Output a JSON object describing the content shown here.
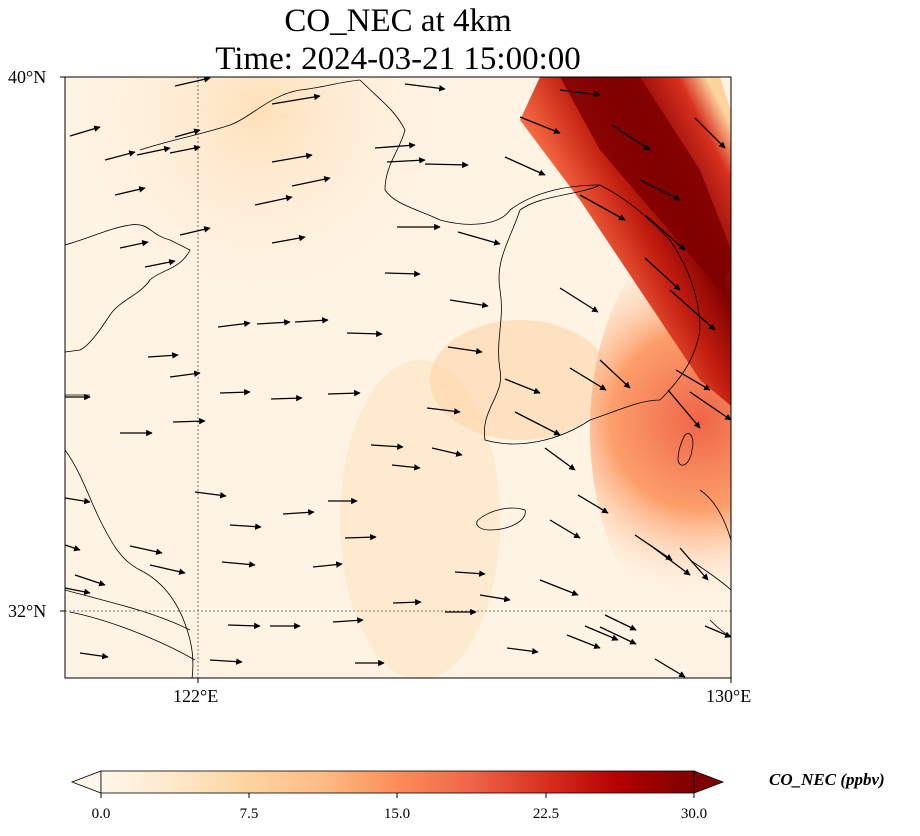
{
  "title": {
    "line1": "CO_NEC at 4km",
    "line2": "Time: 2024-03-21 15:00:00"
  },
  "map": {
    "lat_labels": [
      "40°N",
      "32°N"
    ],
    "lon_labels": [
      "122°E",
      "130°E"
    ],
    "extent": {
      "lon_min": 120,
      "lon_max": 130,
      "lat_min": 31,
      "lat_max": 40
    },
    "gridlines": {
      "lon": [
        122,
        130
      ],
      "lat": [
        32,
        40
      ],
      "style": "dotted"
    },
    "field": {
      "variable": "CO_NEC",
      "description": "plume maximum along northeast diagonal, strongest in the top right"
    },
    "wind_vectors": "generally westerly to northwesterly, stronger on the eastern side"
  },
  "colorbar": {
    "label": "CO_NEC (ppbv)",
    "colormap": "OrRd",
    "extend": "both",
    "tick_labels": [
      "0.0",
      "7.5",
      "15.0",
      "22.5",
      "30.0"
    ],
    "range": [
      0.0,
      30.0
    ],
    "colors": [
      "#fff7ec",
      "#fee8c8",
      "#fdd49e",
      "#fdbb84",
      "#fc8d59",
      "#ef6548",
      "#d7301f",
      "#b30000",
      "#7f0000"
    ]
  }
}
